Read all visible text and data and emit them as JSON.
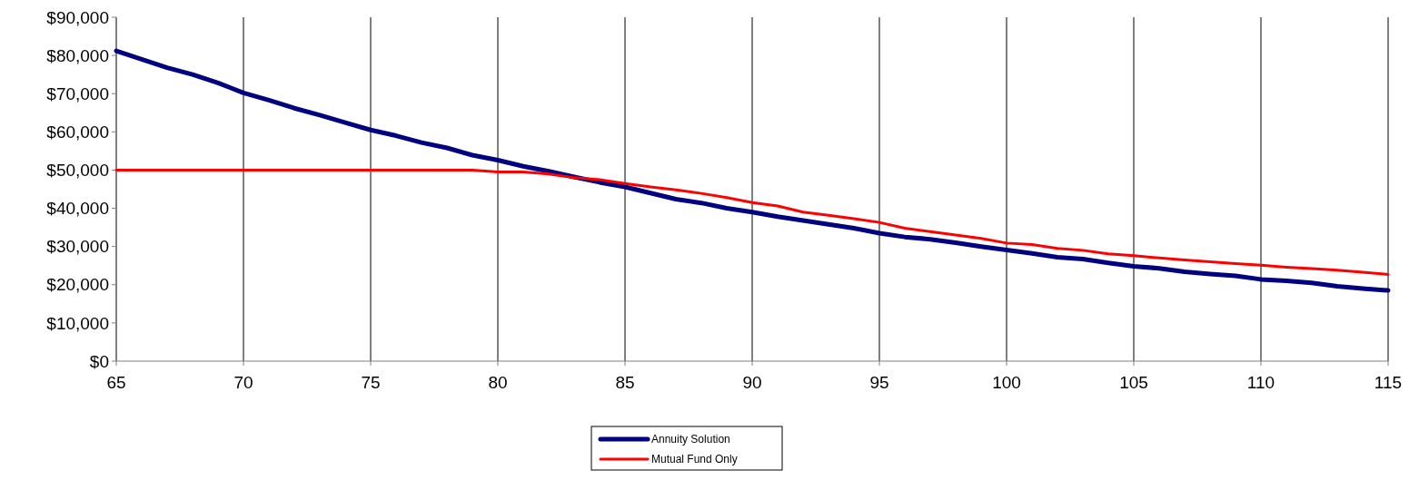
{
  "chart_data": {
    "type": "line",
    "x": [
      65,
      66,
      67,
      68,
      69,
      70,
      71,
      72,
      73,
      74,
      75,
      76,
      77,
      78,
      79,
      80,
      81,
      82,
      83,
      84,
      85,
      86,
      87,
      88,
      89,
      90,
      91,
      92,
      93,
      94,
      95,
      96,
      97,
      98,
      99,
      100,
      101,
      102,
      103,
      104,
      105,
      106,
      107,
      108,
      109,
      110,
      111,
      112,
      113,
      114,
      115
    ],
    "series": [
      {
        "name": "Annuity Solution",
        "color": "#000080",
        "values": [
          81200,
          79000,
          76800,
          75000,
          72800,
          70200,
          68300,
          66200,
          64400,
          62400,
          60500,
          59000,
          57200,
          55800,
          53900,
          52600,
          51000,
          49700,
          48200,
          46800,
          45600,
          44000,
          42400,
          41400,
          40000,
          39000,
          37800,
          36800,
          35800,
          34800,
          33500,
          32500,
          31900,
          31000,
          30000,
          29100,
          28200,
          27200,
          26700,
          25700,
          24800,
          24300,
          23400,
          22800,
          22300,
          21400,
          21000,
          20500,
          19600,
          19000,
          18500
        ]
      },
      {
        "name": "Mutual Fund Only",
        "color": "#ff0000",
        "values": [
          50000,
          50000,
          50000,
          50000,
          50000,
          50000,
          50000,
          50000,
          50000,
          50000,
          50000,
          50000,
          50000,
          50000,
          50000,
          49500,
          49500,
          49000,
          48000,
          47500,
          46500,
          45600,
          44800,
          43900,
          42800,
          41500,
          40600,
          39000,
          38200,
          37300,
          36300,
          34800,
          33900,
          33000,
          32100,
          30900,
          30500,
          29500,
          29000,
          28100,
          27600,
          27000,
          26500,
          26000,
          25500,
          25100,
          24600,
          24200,
          23800,
          23300,
          22700
        ]
      }
    ],
    "xlim": [
      65,
      115
    ],
    "xticks": [
      65,
      70,
      75,
      80,
      85,
      90,
      95,
      100,
      105,
      110,
      115
    ],
    "ylim": [
      0,
      90000
    ],
    "yticks": [
      {
        "value": 0,
        "label": "$0"
      },
      {
        "value": 10000,
        "label": "$10,000"
      },
      {
        "value": 20000,
        "label": "$20,000"
      },
      {
        "value": 30000,
        "label": "$30,000"
      },
      {
        "value": 40000,
        "label": "$40,000"
      },
      {
        "value": 50000,
        "label": "$50,000"
      },
      {
        "value": 60000,
        "label": "$60,000"
      },
      {
        "value": 70000,
        "label": "$70,000"
      },
      {
        "value": 80000,
        "label": "$80,000"
      },
      {
        "value": 90000,
        "label": "$90,000"
      }
    ],
    "grid": "x",
    "legend": "bottom",
    "line_style": "solid",
    "marker": "none"
  }
}
